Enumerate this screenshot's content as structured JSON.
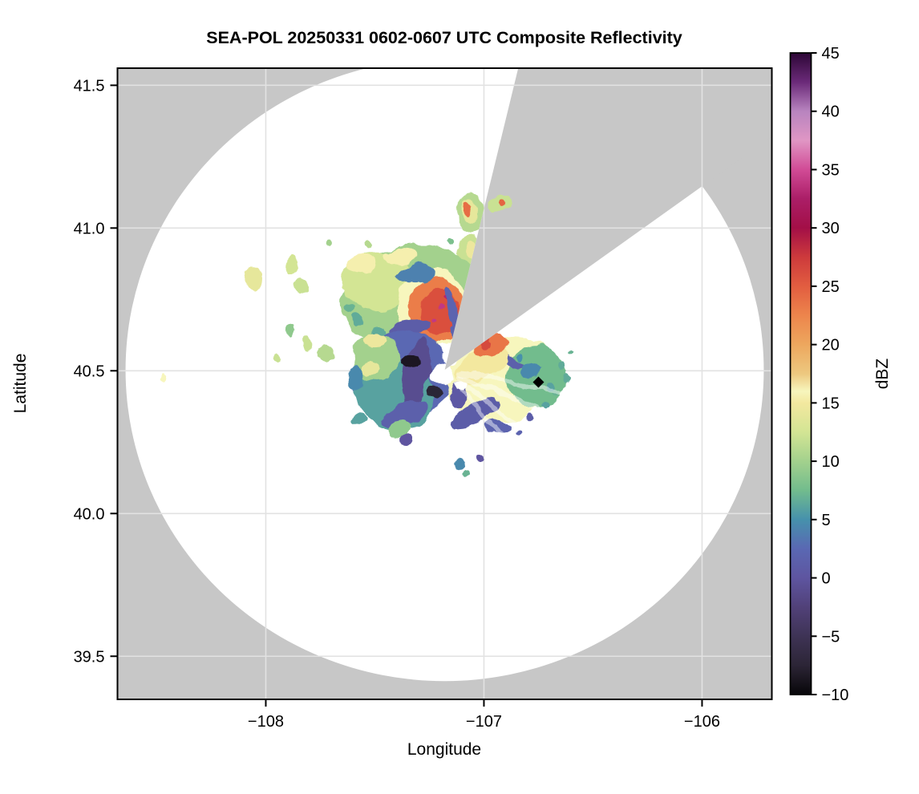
{
  "figure": {
    "title": "SEA-POL 20250331 0602-0607 UTC Composite Reflectivity",
    "background": "#ffffff"
  },
  "colors": {
    "masked_gray": "#c7c7c7",
    "coverage_white": "#ffffff",
    "grid": "#e2e2e2",
    "spine": "#000000",
    "marker": "#000000",
    "beam_streak": "#ffffff"
  },
  "colorbar": {
    "label": "dBZ",
    "vmin": -10,
    "vmax": 45,
    "ticks": [
      45,
      40,
      35,
      30,
      25,
      20,
      15,
      10,
      5,
      0,
      -5,
      -10
    ]
  },
  "chart_data": {
    "type": "heatmap",
    "title": "SEA-POL 20250331 0602-0607 UTC Composite Reflectivity",
    "xlabel": "Longitude",
    "ylabel": "Latitude",
    "xlim": [
      -108.68,
      -105.68
    ],
    "ylim": [
      39.349,
      41.56
    ],
    "xticks": [
      -108,
      -107,
      -106
    ],
    "yticks": [
      39.5,
      40.0,
      40.5,
      41.0,
      41.5
    ],
    "grid": true,
    "legend_position": "right-colorbar",
    "units": "dBZ",
    "colormap_stops": [
      [
        -10,
        "#070609"
      ],
      [
        -7.5,
        "#2c2536"
      ],
      [
        -5,
        "#3e3355"
      ],
      [
        -2.5,
        "#514179"
      ],
      [
        0,
        "#5e55a0"
      ],
      [
        2.5,
        "#5a68b3"
      ],
      [
        5,
        "#4691ac"
      ],
      [
        7.5,
        "#72bc8d"
      ],
      [
        10,
        "#a3d18d"
      ],
      [
        12.5,
        "#d3e594"
      ],
      [
        15,
        "#f3e89f"
      ],
      [
        16,
        "#f7f6bd"
      ],
      [
        17.5,
        "#edc87f"
      ],
      [
        20,
        "#eda75e"
      ],
      [
        22.5,
        "#ed854c"
      ],
      [
        25,
        "#e25d40"
      ],
      [
        27.5,
        "#cd3a3c"
      ],
      [
        30,
        "#a30f47"
      ],
      [
        32.5,
        "#ab1e67"
      ],
      [
        35,
        "#d14b96"
      ],
      [
        37.5,
        "#e096c4"
      ],
      [
        40,
        "#b884bf"
      ],
      [
        42.5,
        "#6b2a79"
      ],
      [
        45,
        "#2d0736"
      ]
    ],
    "radar": {
      "lon": -107.18,
      "lat": 40.503,
      "coverage_rx_deg_lon": 1.463,
      "coverage_ry_deg_lat": 1.09,
      "blocked_sector_az_deg": [
        13.7,
        54.5
      ]
    },
    "marker": {
      "lon": -106.75,
      "lat": 40.46,
      "shape": "diamond"
    },
    "beam_streaks_az_deg": [
      100,
      113,
      126,
      139
    ],
    "echo_regions": [
      {
        "lon": -107.059,
        "lat": 41.045,
        "rx": 0.066,
        "ry": 0.067,
        "rot": 0,
        "dbz": 11
      },
      {
        "lon": -107.066,
        "lat": 41.056,
        "rx": 0.037,
        "ry": 0.039,
        "rot": 0,
        "dbz": 14
      },
      {
        "lon": -107.074,
        "lat": 41.065,
        "rx": 0.018,
        "ry": 0.02,
        "rot": 0,
        "dbz": 24
      },
      {
        "lon": -107.066,
        "lat": 40.921,
        "rx": 0.059,
        "ry": 0.051,
        "rot": 0,
        "dbz": 12
      },
      {
        "lon": -107.055,
        "lat": 40.921,
        "rx": 0.029,
        "ry": 0.028,
        "rot": 0,
        "dbz": 14.5
      },
      {
        "lon": -107.158,
        "lat": 40.955,
        "rx": 0.015,
        "ry": 0.011,
        "rot": 0,
        "dbz": 8
      },
      {
        "lon": -107.114,
        "lat": 40.837,
        "rx": 0.018,
        "ry": 0.014,
        "rot": 0,
        "dbz": 10
      },
      {
        "lon": -107.011,
        "lat": 40.829,
        "rx": 0.022,
        "ry": 0.017,
        "rot": 0,
        "dbz": 10
      },
      {
        "lon": -107.342,
        "lat": 40.764,
        "rx": 0.313,
        "ry": 0.174,
        "rot": -15,
        "dbz": 10
      },
      {
        "lon": -107.489,
        "lat": 40.815,
        "rx": 0.165,
        "ry": 0.098,
        "rot": 0,
        "dbz": 12.5
      },
      {
        "lon": -107.563,
        "lat": 40.871,
        "rx": 0.066,
        "ry": 0.034,
        "rot": 0,
        "dbz": 15.5
      },
      {
        "lon": -107.379,
        "lat": 40.899,
        "rx": 0.081,
        "ry": 0.028,
        "rot": 0,
        "dbz": 15.5
      },
      {
        "lon": -107.232,
        "lat": 40.716,
        "rx": 0.165,
        "ry": 0.14,
        "rot": 0,
        "dbz": 16
      },
      {
        "lon": -107.213,
        "lat": 40.708,
        "rx": 0.132,
        "ry": 0.118,
        "rot": 0,
        "dbz": 23
      },
      {
        "lon": -107.202,
        "lat": 40.702,
        "rx": 0.088,
        "ry": 0.084,
        "rot": 0,
        "dbz": 26
      },
      {
        "lon": -107.195,
        "lat": 40.716,
        "rx": 0.015,
        "ry": 0.011,
        "rot": 0,
        "dbz": 34
      },
      {
        "lon": -107.221,
        "lat": 40.674,
        "rx": 0.011,
        "ry": 0.008,
        "rot": 0,
        "dbz": 34
      },
      {
        "lon": -107.173,
        "lat": 40.753,
        "rx": 0.011,
        "ry": 0.008,
        "rot": 0,
        "dbz": 33
      },
      {
        "lon": -107.305,
        "lat": 40.837,
        "rx": 0.096,
        "ry": 0.031,
        "rot": -5,
        "dbz": 4
      },
      {
        "lon": -107.57,
        "lat": 40.68,
        "rx": 0.029,
        "ry": 0.022,
        "rot": 0,
        "dbz": 6.5
      },
      {
        "lon": -107.61,
        "lat": 40.716,
        "rx": 0.022,
        "ry": 0.017,
        "rot": 0,
        "dbz": 7
      },
      {
        "lon": -107.489,
        "lat": 40.632,
        "rx": 0.029,
        "ry": 0.022,
        "rot": 0,
        "dbz": 6.5
      },
      {
        "lon": -107.342,
        "lat": 40.652,
        "rx": 0.103,
        "ry": 0.028,
        "rot": -10,
        "dbz": 1
      },
      {
        "lon": -107.132,
        "lat": 40.674,
        "rx": 0.022,
        "ry": 0.126,
        "rot": -14,
        "dbz": 2
      },
      {
        "lon": -107.379,
        "lat": 40.478,
        "rx": 0.228,
        "ry": 0.163,
        "rot": 0,
        "dbz": 2.5
      },
      {
        "lon": -107.408,
        "lat": 40.416,
        "rx": 0.191,
        "ry": 0.118,
        "rot": 20,
        "dbz": 6
      },
      {
        "lon": -107.496,
        "lat": 40.548,
        "rx": 0.11,
        "ry": 0.079,
        "rot": 0,
        "dbz": 10
      },
      {
        "lon": -107.504,
        "lat": 40.604,
        "rx": 0.051,
        "ry": 0.025,
        "rot": 0,
        "dbz": 14.5
      },
      {
        "lon": -107.515,
        "lat": 40.511,
        "rx": 0.044,
        "ry": 0.022,
        "rot": 0,
        "dbz": 14
      },
      {
        "lon": -107.313,
        "lat": 40.492,
        "rx": 0.059,
        "ry": 0.126,
        "rot": 10,
        "dbz": -1
      },
      {
        "lon": -107.331,
        "lat": 40.534,
        "rx": 0.051,
        "ry": 0.025,
        "rot": 0,
        "dbz": -8.5
      },
      {
        "lon": -107.224,
        "lat": 40.424,
        "rx": 0.033,
        "ry": 0.02,
        "rot": 0,
        "dbz": -7.5
      },
      {
        "lon": -107.36,
        "lat": 40.351,
        "rx": 0.11,
        "ry": 0.039,
        "rot": -20,
        "dbz": 1.5
      },
      {
        "lon": -107.386,
        "lat": 40.295,
        "rx": 0.051,
        "ry": 0.034,
        "rot": 0,
        "dbz": 9
      },
      {
        "lon": -107.349,
        "lat": 40.253,
        "rx": 0.029,
        "ry": 0.022,
        "rot": 0,
        "dbz": 0
      },
      {
        "lon": -107.585,
        "lat": 40.478,
        "rx": 0.037,
        "ry": 0.045,
        "rot": 0,
        "dbz": 4.5
      },
      {
        "lon": -106.912,
        "lat": 40.472,
        "rx": 0.265,
        "ry": 0.146,
        "rot": -12,
        "dbz": 16
      },
      {
        "lon": -106.761,
        "lat": 40.478,
        "rx": 0.14,
        "ry": 0.112,
        "rot": 0,
        "dbz": 7.5
      },
      {
        "lon": -106.938,
        "lat": 40.556,
        "rx": 0.147,
        "ry": 0.014,
        "rot": 25,
        "dbz": 1.5
      },
      {
        "lon": -107.011,
        "lat": 40.52,
        "rx": 0.129,
        "ry": 0.051,
        "rot": -30,
        "dbz": 15
      },
      {
        "lon": -106.967,
        "lat": 40.59,
        "rx": 0.081,
        "ry": 0.037,
        "rot": -20,
        "dbz": 23.5
      },
      {
        "lon": -106.989,
        "lat": 40.596,
        "rx": 0.026,
        "ry": 0.02,
        "rot": 0,
        "dbz": 26.5
      },
      {
        "lon": -106.79,
        "lat": 40.5,
        "rx": 0.044,
        "ry": 0.022,
        "rot": 0,
        "dbz": 4.5
      },
      {
        "lon": -106.834,
        "lat": 40.548,
        "rx": 0.018,
        "ry": 0.014,
        "rot": 0,
        "dbz": 5
      },
      {
        "lon": -106.688,
        "lat": 40.449,
        "rx": 0.022,
        "ry": 0.017,
        "rot": 0,
        "dbz": 6
      },
      {
        "lon": -107.04,
        "lat": 40.351,
        "rx": 0.125,
        "ry": 0.034,
        "rot": -25,
        "dbz": 1
      },
      {
        "lon": -107.121,
        "lat": 40.421,
        "rx": 0.037,
        "ry": 0.051,
        "rot": 0,
        "dbz": 0.5
      },
      {
        "lon": -106.938,
        "lat": 40.303,
        "rx": 0.059,
        "ry": 0.022,
        "rot": 0,
        "dbz": 2
      },
      {
        "lon": -106.643,
        "lat": 40.52,
        "rx": 0.018,
        "ry": 0.014,
        "rot": 0,
        "dbz": 6.5
      },
      {
        "lon": -106.621,
        "lat": 40.478,
        "rx": 0.015,
        "ry": 0.011,
        "rot": 0,
        "dbz": 6.5
      },
      {
        "lon": -106.662,
        "lat": 40.427,
        "rx": 0.018,
        "ry": 0.014,
        "rot": 0,
        "dbz": 7
      },
      {
        "lon": -106.599,
        "lat": 40.562,
        "rx": 0.011,
        "ry": 0.008,
        "rot": 0,
        "dbz": 7
      },
      {
        "lon": -106.717,
        "lat": 40.379,
        "rx": 0.015,
        "ry": 0.011,
        "rot": 0,
        "dbz": 6
      },
      {
        "lon": -106.783,
        "lat": 40.337,
        "rx": 0.018,
        "ry": 0.014,
        "rot": 0,
        "dbz": 1
      },
      {
        "lon": -106.846,
        "lat": 40.281,
        "rx": 0.015,
        "ry": 0.011,
        "rot": 0,
        "dbz": 2
      },
      {
        "lon": -108.059,
        "lat": 40.823,
        "rx": 0.037,
        "ry": 0.045,
        "rot": 0,
        "dbz": 14
      },
      {
        "lon": -107.879,
        "lat": 40.871,
        "rx": 0.029,
        "ry": 0.039,
        "rot": 0,
        "dbz": 12.5
      },
      {
        "lon": -107.835,
        "lat": 40.798,
        "rx": 0.029,
        "ry": 0.028,
        "rot": 0,
        "dbz": 12
      },
      {
        "lon": -107.724,
        "lat": 40.559,
        "rx": 0.044,
        "ry": 0.037,
        "rot": 0,
        "dbz": 11
      },
      {
        "lon": -107.945,
        "lat": 40.551,
        "rx": 0.018,
        "ry": 0.014,
        "rot": 0,
        "dbz": 12
      },
      {
        "lon": -107.879,
        "lat": 40.646,
        "rx": 0.018,
        "ry": 0.025,
        "rot": 0,
        "dbz": 9
      },
      {
        "lon": -107.809,
        "lat": 40.59,
        "rx": 0.018,
        "ry": 0.028,
        "rot": 0,
        "dbz": 12
      },
      {
        "lon": -108.482,
        "lat": 40.475,
        "rx": 0.015,
        "ry": 0.011,
        "rot": 0,
        "dbz": 16
      },
      {
        "lon": -107.721,
        "lat": 40.949,
        "rx": 0.015,
        "ry": 0.011,
        "rot": 0,
        "dbz": 10
      },
      {
        "lon": -107.54,
        "lat": 40.938,
        "rx": 0.018,
        "ry": 0.014,
        "rot": 0,
        "dbz": 11
      },
      {
        "lon": -107.57,
        "lat": 40.326,
        "rx": 0.037,
        "ry": 0.02,
        "rot": 0,
        "dbz": 6
      },
      {
        "lon": -107.121,
        "lat": 40.174,
        "rx": 0.029,
        "ry": 0.017,
        "rot": 0,
        "dbz": 4.5
      },
      {
        "lon": -107.085,
        "lat": 40.146,
        "rx": 0.018,
        "ry": 0.011,
        "rot": 0,
        "dbz": 7
      },
      {
        "lon": -107.022,
        "lat": 40.197,
        "rx": 0.015,
        "ry": 0.011,
        "rot": 0,
        "dbz": 0
      },
      {
        "lon": -107.195,
        "lat": 40.489,
        "rx": 0.059,
        "ry": 0.034,
        "rot": 0,
        "color": "#ffffff"
      },
      {
        "lon": -107.158,
        "lat": 40.542,
        "rx": 0.033,
        "ry": 0.025,
        "rot": 0,
        "color": "#ffffff"
      },
      {
        "lon": -107.114,
        "lat": 40.455,
        "rx": 0.029,
        "ry": 0.017,
        "rot": 0,
        "color": "#ffffff"
      }
    ],
    "echo_over_sector": [
      {
        "lon": -106.93,
        "lat": 41.087,
        "rx": 0.048,
        "ry": 0.025,
        "rot": -20,
        "dbz": 12
      },
      {
        "lon": -106.919,
        "lat": 41.09,
        "rx": 0.015,
        "ry": 0.011,
        "rot": 0,
        "dbz": 24.5
      }
    ]
  }
}
